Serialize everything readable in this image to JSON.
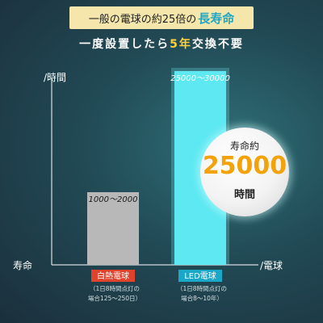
{
  "header": {
    "banner_prefix": "一般の電球の約25倍の",
    "banner_highlight": "長寿命",
    "subtitle_prefix": "一度設置したら",
    "subtitle_highlight": "5年",
    "subtitle_suffix": "交換不要"
  },
  "badge": {
    "top": "寿命約",
    "value": "25000",
    "bottom": "時間"
  },
  "notes": {
    "left": [
      "（1日8時間点灯の",
      "場合125〜250日）"
    ],
    "right": [
      "（1日8時間点灯の",
      "場合8〜10年）"
    ]
  },
  "colors": {
    "background": "#1f3d4a",
    "banner": "#f5e6ac",
    "accent_cyan": "#1fa7c4",
    "accent_yellow": "#ffd23e",
    "badge_number": "#f2a20a",
    "bar_incandescent": "#b8b8b8",
    "bar_led": "#5de8f2",
    "category_incandescent": "#e0432b",
    "category_led": "#1ba7c8"
  },
  "chart_data": {
    "type": "bar",
    "title": "",
    "ylabel": "/時間",
    "xlabel": "/電球",
    "axis_corner_label": "寿命",
    "categories": [
      "白熱電球",
      "LED電球"
    ],
    "series": [
      {
        "values": [
          [
            1000,
            2000
          ],
          [
            25000,
            30000
          ]
        ],
        "value_labels": [
          "1000〜2000",
          "25000〜30000"
        ]
      }
    ],
    "ylim": [
      0,
      30000
    ],
    "grid": false,
    "legend": "none"
  }
}
